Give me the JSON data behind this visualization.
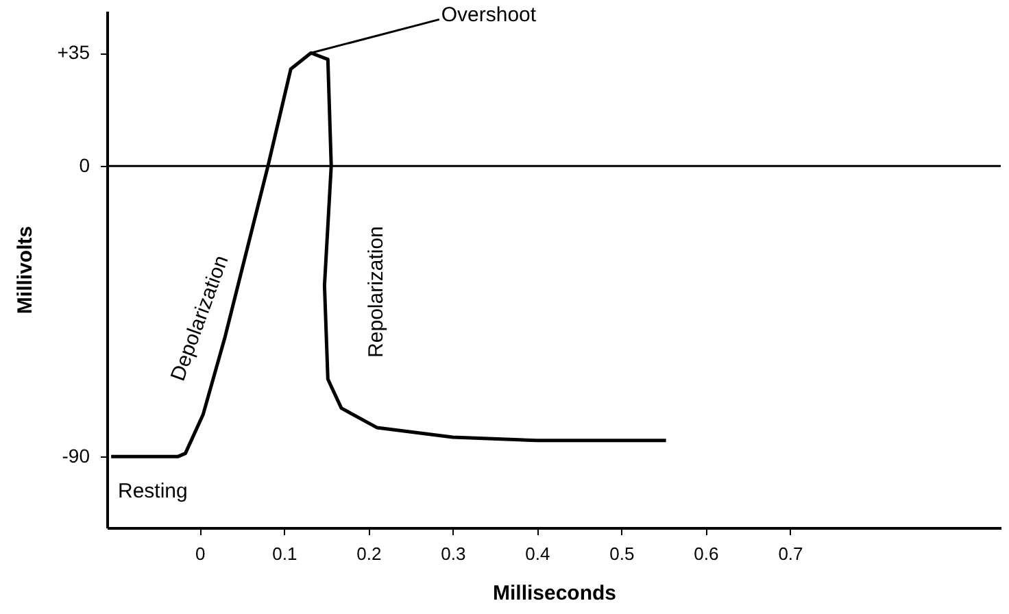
{
  "chart_data": {
    "type": "line",
    "xlabel": "Milliseconds",
    "ylabel": "Millivolts",
    "x": [
      -0.105,
      -0.026,
      -0.017,
      0.004,
      0.03,
      0.055,
      0.081,
      0.108,
      0.132,
      0.152,
      0.156,
      0.148,
      0.152,
      0.168,
      0.21,
      0.3,
      0.4,
      0.553
    ],
    "series": [
      {
        "color": "#000000",
        "values": [
          -90,
          -90,
          -89,
          -77,
          -53,
          -27,
          0,
          30,
          35,
          33,
          0,
          -37,
          -66,
          -75,
          -81,
          -84,
          -85,
          -85
        ]
      }
    ],
    "xlim": [
      -0.11,
      0.95
    ],
    "xticks": [
      0,
      0.1,
      0.2,
      0.3,
      0.4,
      0.5,
      0.6,
      0.7
    ],
    "ylim": [
      -112,
      48
    ],
    "yticks": [
      -90,
      0,
      {
        "value": 35,
        "label": "+35"
      }
    ],
    "ref_lines": [
      {
        "axis": "y",
        "value": 0,
        "color": "#000000"
      }
    ],
    "annotations": [
      {
        "text": "Overshoot",
        "x": 0.132,
        "y": 35
      },
      {
        "text": "Depolarization",
        "x": 0.03,
        "y": -50
      },
      "Repolarization",
      "Resting"
    ],
    "grid": false,
    "marker": "none",
    "line_style": "solid"
  }
}
